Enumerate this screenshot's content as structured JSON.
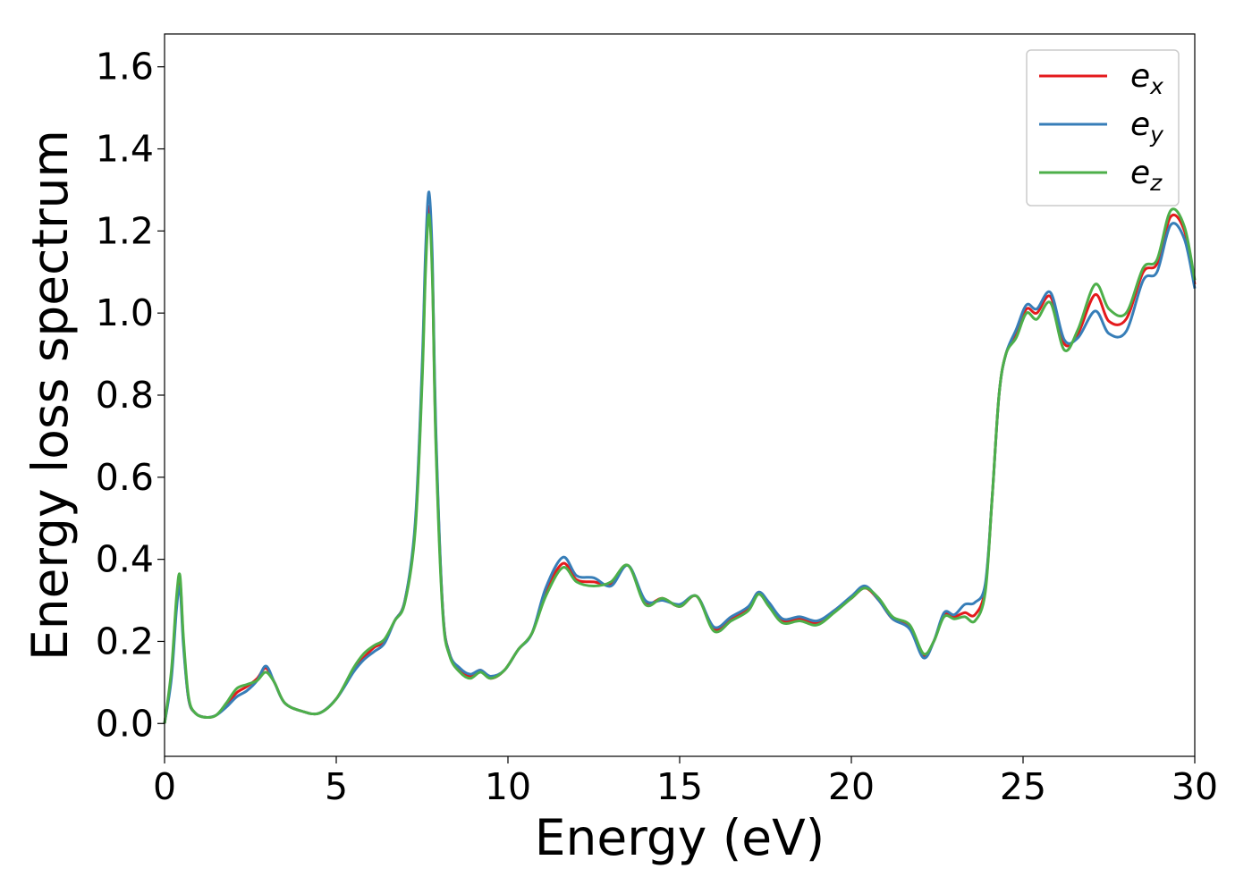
{
  "chart_data": {
    "type": "line",
    "title": "",
    "xlabel": "Energy (eV)",
    "ylabel": "Energy loss spectrum",
    "xlim": [
      0,
      30
    ],
    "ylim": [
      -0.08,
      1.68
    ],
    "xticks": [
      0,
      5,
      10,
      15,
      20,
      25,
      30
    ],
    "xtick_labels": [
      "0",
      "5",
      "10",
      "15",
      "20",
      "25",
      "30"
    ],
    "yticks": [
      0.0,
      0.2,
      0.4,
      0.6,
      0.8,
      1.0,
      1.2,
      1.4,
      1.6
    ],
    "ytick_labels": [
      "0.0",
      "0.2",
      "0.4",
      "0.6",
      "0.8",
      "1.0",
      "1.2",
      "1.4",
      "1.6"
    ],
    "grid": false,
    "legend_position": "top-right",
    "x": [
      0.0,
      0.2,
      0.35,
      0.45,
      0.55,
      0.7,
      0.9,
      1.2,
      1.5,
      1.8,
      2.1,
      2.4,
      2.7,
      2.95,
      3.2,
      3.5,
      4.0,
      4.5,
      5.0,
      5.5,
      5.8,
      6.1,
      6.4,
      6.7,
      7.0,
      7.3,
      7.5,
      7.6,
      7.7,
      7.8,
      7.9,
      8.1,
      8.3,
      8.6,
      8.9,
      9.2,
      9.5,
      9.9,
      10.3,
      10.7,
      11.1,
      11.6,
      12.0,
      12.5,
      13.0,
      13.5,
      14.0,
      14.5,
      15.0,
      15.5,
      16.0,
      16.5,
      17.0,
      17.3,
      17.6,
      18.0,
      18.5,
      19.0,
      19.5,
      20.0,
      20.4,
      20.8,
      21.2,
      21.7,
      22.1,
      22.4,
      22.7,
      23.0,
      23.3,
      23.6,
      23.9,
      24.1,
      24.3,
      24.5,
      24.8,
      25.1,
      25.4,
      25.8,
      26.2,
      26.6,
      27.1,
      27.5,
      28.0,
      28.5,
      28.9,
      29.3,
      29.7,
      30.0
    ],
    "series": [
      {
        "name": "e_x",
        "color": "#e41a1c",
        "values": [
          0.0,
          0.12,
          0.3,
          0.35,
          0.2,
          0.06,
          0.025,
          0.015,
          0.02,
          0.045,
          0.075,
          0.09,
          0.11,
          0.135,
          0.1,
          0.05,
          0.03,
          0.025,
          0.06,
          0.13,
          0.16,
          0.185,
          0.2,
          0.25,
          0.3,
          0.48,
          0.85,
          1.12,
          1.26,
          1.1,
          0.7,
          0.28,
          0.17,
          0.13,
          0.115,
          0.13,
          0.11,
          0.13,
          0.18,
          0.22,
          0.32,
          0.39,
          0.35,
          0.345,
          0.34,
          0.385,
          0.295,
          0.305,
          0.285,
          0.31,
          0.23,
          0.255,
          0.28,
          0.32,
          0.29,
          0.25,
          0.255,
          0.245,
          0.275,
          0.305,
          0.33,
          0.3,
          0.255,
          0.235,
          0.165,
          0.2,
          0.265,
          0.26,
          0.27,
          0.265,
          0.33,
          0.55,
          0.8,
          0.9,
          0.95,
          1.01,
          1.0,
          1.04,
          0.925,
          0.95,
          1.045,
          0.98,
          0.985,
          1.1,
          1.12,
          1.235,
          1.2,
          1.07
        ]
      },
      {
        "name": "e_y",
        "color": "#377eb8",
        "values": [
          0.0,
          0.11,
          0.28,
          0.33,
          0.19,
          0.06,
          0.025,
          0.015,
          0.02,
          0.04,
          0.065,
          0.08,
          0.105,
          0.14,
          0.1,
          0.05,
          0.03,
          0.025,
          0.06,
          0.125,
          0.155,
          0.175,
          0.195,
          0.25,
          0.3,
          0.49,
          0.87,
          1.15,
          1.295,
          1.13,
          0.72,
          0.28,
          0.17,
          0.135,
          0.12,
          0.13,
          0.115,
          0.13,
          0.18,
          0.22,
          0.33,
          0.405,
          0.36,
          0.355,
          0.335,
          0.385,
          0.3,
          0.3,
          0.29,
          0.31,
          0.235,
          0.26,
          0.285,
          0.32,
          0.295,
          0.255,
          0.26,
          0.25,
          0.275,
          0.31,
          0.335,
          0.3,
          0.255,
          0.23,
          0.16,
          0.2,
          0.27,
          0.265,
          0.29,
          0.295,
          0.34,
          0.55,
          0.8,
          0.9,
          0.96,
          1.02,
          1.01,
          1.05,
          0.935,
          0.94,
          1.005,
          0.95,
          0.955,
          1.08,
          1.1,
          1.215,
          1.18,
          1.06
        ]
      },
      {
        "name": "e_z",
        "color": "#4daf4a",
        "values": [
          0.0,
          0.13,
          0.31,
          0.36,
          0.21,
          0.065,
          0.025,
          0.015,
          0.02,
          0.05,
          0.085,
          0.095,
          0.105,
          0.125,
          0.1,
          0.05,
          0.03,
          0.025,
          0.06,
          0.135,
          0.17,
          0.19,
          0.205,
          0.25,
          0.295,
          0.47,
          0.83,
          1.1,
          1.24,
          1.08,
          0.68,
          0.27,
          0.165,
          0.125,
          0.11,
          0.125,
          0.11,
          0.13,
          0.18,
          0.22,
          0.31,
          0.38,
          0.345,
          0.335,
          0.345,
          0.385,
          0.29,
          0.305,
          0.285,
          0.31,
          0.225,
          0.25,
          0.275,
          0.315,
          0.285,
          0.245,
          0.25,
          0.24,
          0.27,
          0.305,
          0.33,
          0.305,
          0.26,
          0.24,
          0.17,
          0.2,
          0.26,
          0.255,
          0.26,
          0.25,
          0.32,
          0.55,
          0.8,
          0.9,
          0.94,
          1.0,
          0.985,
          1.025,
          0.91,
          0.96,
          1.07,
          1.01,
          1.0,
          1.11,
          1.13,
          1.25,
          1.21,
          1.08
        ]
      }
    ]
  },
  "legend": {
    "entries": [
      {
        "base": "e",
        "sub": "x",
        "color": "#e41a1c"
      },
      {
        "base": "e",
        "sub": "y",
        "color": "#377eb8"
      },
      {
        "base": "e",
        "sub": "z",
        "color": "#4daf4a"
      }
    ]
  }
}
